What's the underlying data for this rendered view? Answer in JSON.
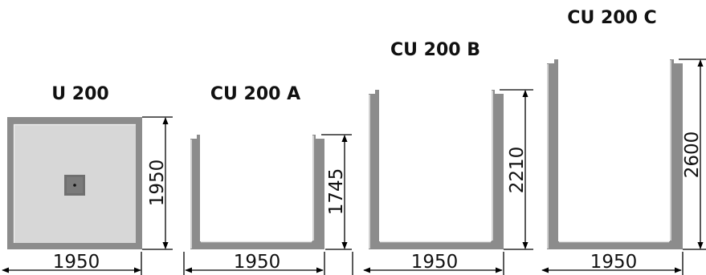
{
  "units": [
    {
      "id": "u200",
      "title": "U 200",
      "width_label": "1950",
      "height_label": "1950"
    },
    {
      "id": "cu200a",
      "title": "CU 200 A",
      "width_label": "1950",
      "height_label": "1745"
    },
    {
      "id": "cu200b",
      "title": "CU 200 B",
      "width_label": "1950",
      "height_label": "2210"
    },
    {
      "id": "cu200c",
      "title": "CU 200 C",
      "width_label": "1950",
      "height_label": "2600"
    }
  ],
  "colors": {
    "wall": "#8c8c8c",
    "slab_fill": "#d7d7d7",
    "center_block": "#6f6f6f",
    "highlight": "#e4e4e4"
  }
}
